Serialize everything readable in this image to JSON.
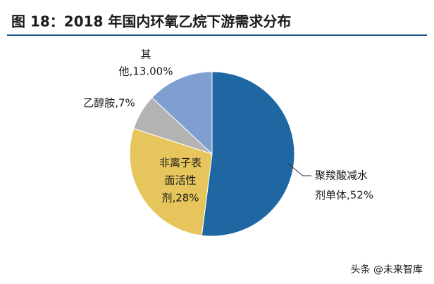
{
  "chart_data": {
    "type": "pie",
    "title": "图 18：2018 年国内环氧乙烷下游需求分布",
    "categories": [
      "聚羧酸减水剂单体",
      "非离子表面活性剂",
      "乙醇胺",
      "其他"
    ],
    "values": [
      52,
      28,
      7,
      13
    ],
    "labels": [
      [
        "聚羧酸减水",
        "剂单体,52%"
      ],
      [
        "非离子表",
        "面活性",
        "剂,28%"
      ],
      [
        "乙醇胺,7%"
      ],
      [
        "其",
        "他,13.00%"
      ]
    ],
    "colors": [
      "#1f67a3",
      "#e6c65c",
      "#b3b3b3",
      "#7e9fd0"
    ],
    "watermark": "头条 @未来智库"
  }
}
